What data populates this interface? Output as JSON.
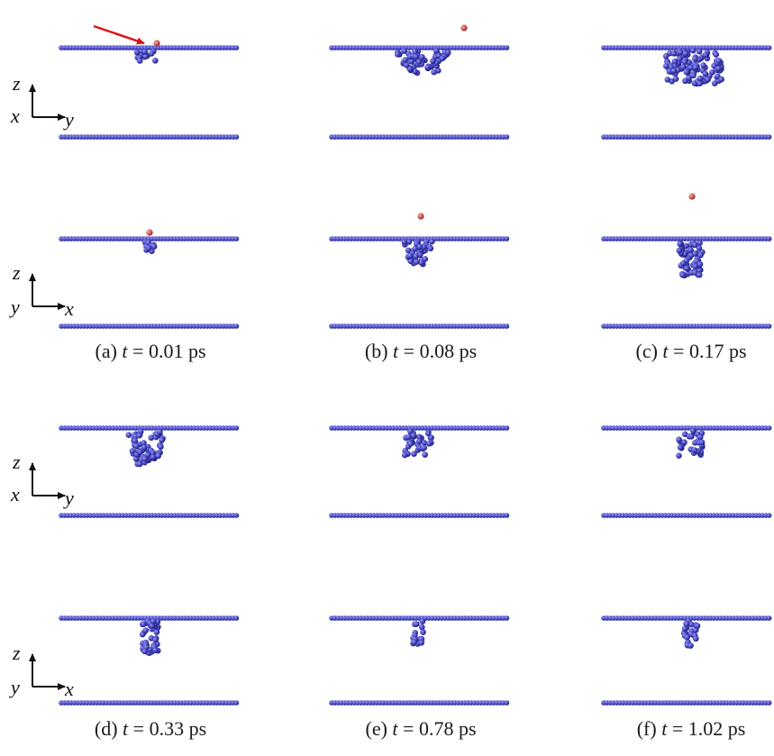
{
  "axis_sets": [
    {
      "vertical": "z",
      "left": "x",
      "right": "y"
    },
    {
      "vertical": "z",
      "left": "y",
      "right": "x"
    },
    {
      "vertical": "z",
      "left": "x",
      "right": "y"
    },
    {
      "vertical": "z",
      "left": "y",
      "right": "x"
    }
  ],
  "captions": [
    {
      "prefix": "(a) ",
      "var": "t",
      "rest": " = 0.01 ps"
    },
    {
      "prefix": "(b) ",
      "var": "t",
      "rest": " = 0.08 ps"
    },
    {
      "prefix": "(c) ",
      "var": "t",
      "rest": " = 0.17 ps"
    },
    {
      "prefix": "(d) ",
      "var": "t",
      "rest": " = 0.33 ps"
    },
    {
      "prefix": "(e) ",
      "var": "t",
      "rest": " = 0.78 ps"
    },
    {
      "prefix": "(f) ",
      "var": "t",
      "rest": " = 1.02 ps"
    }
  ],
  "colors": {
    "atom": "#4a4ac8",
    "atom_light": "#8c8cf0",
    "atom_dark": "#1e1e7a",
    "ion": "#d05050",
    "arrow": "#e01010"
  }
}
